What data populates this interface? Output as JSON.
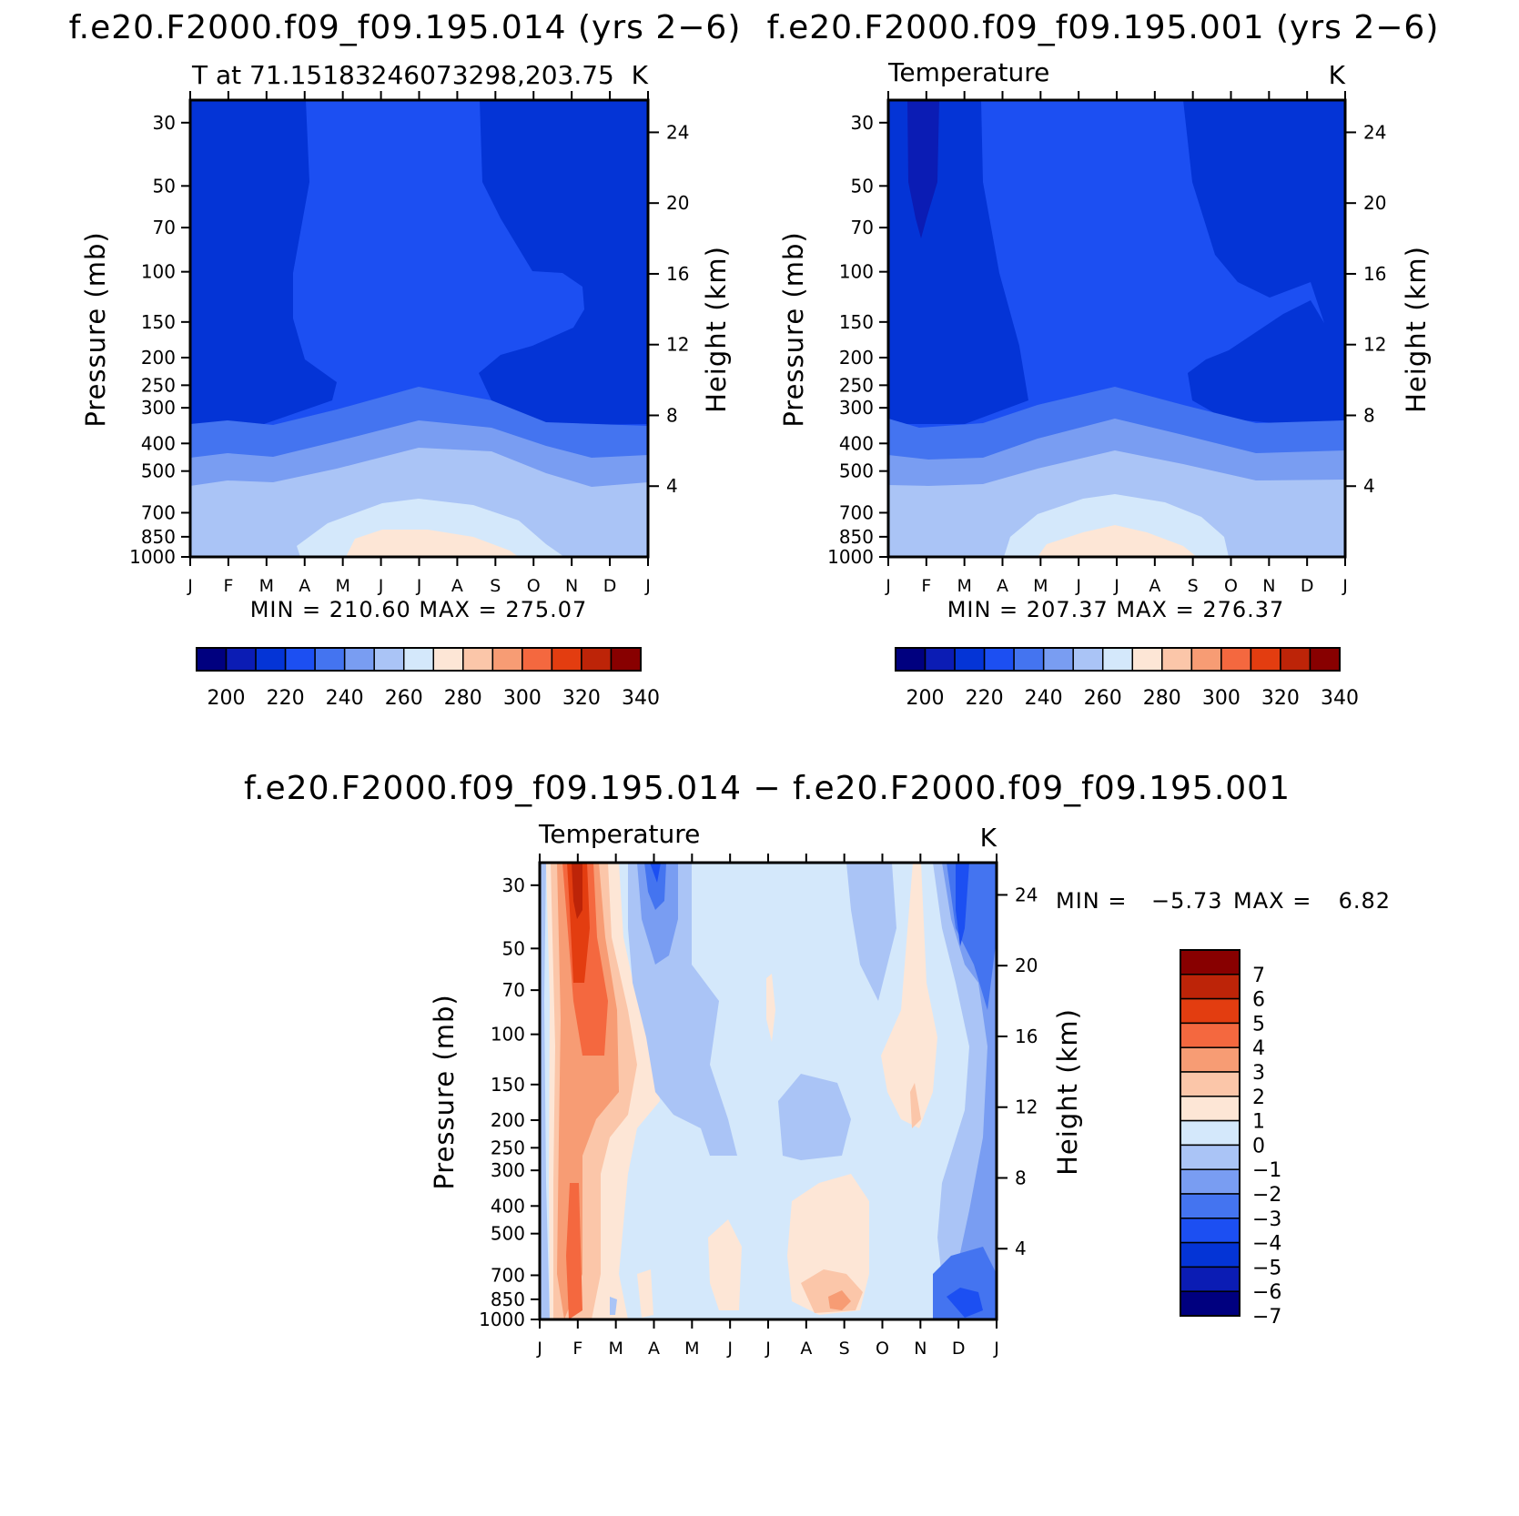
{
  "colors": {
    "palette": [
      "#00007f",
      "#0b1cb4",
      "#0434d6",
      "#1c4ff2",
      "#4474f0",
      "#799df2",
      "#aac4f6",
      "#d4e8fb",
      "#fde6d6",
      "#fbc6a9",
      "#f79c74",
      "#f4683f",
      "#e33d10",
      "#bd2408",
      "#880000"
    ],
    "contour_palette": [
      "#00007f",
      "#0b1cb4",
      "#0434d6",
      "#1c4ff2",
      "#4474f0",
      "#799df2",
      "#aac4f6",
      "#d4e8fb",
      "#fde6d6",
      "#fbc6a9",
      "#f79c74",
      "#f4683f",
      "#e33d10",
      "#bd2408",
      "#880000"
    ]
  },
  "axes_common": {
    "pressure_ticks": [
      "30",
      "50",
      "70",
      "100",
      "150",
      "200",
      "250",
      "300",
      "400",
      "500",
      "700",
      "850",
      "1000"
    ],
    "height_ticks": [
      "24",
      "20",
      "16",
      "12",
      "8",
      "4"
    ],
    "months": [
      "J",
      "F",
      "M",
      "A",
      "M",
      "J",
      "J",
      "A",
      "S",
      "O",
      "N",
      "D",
      "J"
    ],
    "ylabel": "Pressure (mb)",
    "ylabel_right": "Height (km)"
  },
  "chart_data": [
    {
      "type": "heatmap",
      "title": "f.e20.F2000.f09_f09.195.014 (yrs 2−6)",
      "left_label": "T at 71.15183246073298,203.75",
      "right_label": "K",
      "xlabel": "",
      "ylabel": "Pressure (mb)",
      "ylabel_right": "Height (km)",
      "min_max": "MIN =  210.60  MAX =  275.07",
      "min": 210.6,
      "max": 275.07,
      "colorbar_labels": [
        "200",
        "220",
        "240",
        "260",
        "280",
        "300",
        "320",
        "340"
      ],
      "levels": [
        200,
        210,
        220,
        230,
        240,
        250,
        260,
        270,
        280,
        290,
        300,
        310,
        320,
        330,
        340
      ]
    },
    {
      "type": "heatmap",
      "title": "f.e20.F2000.f09_f09.195.001 (yrs 2−6)",
      "left_label": "Temperature",
      "right_label": "K",
      "xlabel": "",
      "ylabel": "Pressure (mb)",
      "ylabel_right": "Height (km)",
      "min_max": "MIN =  207.37  MAX =  276.37",
      "min": 207.37,
      "max": 276.37,
      "colorbar_labels": [
        "200",
        "220",
        "240",
        "260",
        "280",
        "300",
        "320",
        "340"
      ],
      "levels": [
        200,
        210,
        220,
        230,
        240,
        250,
        260,
        270,
        280,
        290,
        300,
        310,
        320,
        330,
        340
      ]
    },
    {
      "type": "heatmap",
      "title": "f.e20.F2000.f09_f09.195.014 − f.e20.F2000.f09_f09.195.001",
      "left_label": "Temperature",
      "right_label": "K",
      "xlabel": "",
      "ylabel": "Pressure (mb)",
      "ylabel_right": "Height (km)",
      "min_max_label": "MIN =",
      "min_value": "−5.73",
      "max_label": "MAX =",
      "max_value": "6.82",
      "min": -5.73,
      "max": 6.82,
      "colorbar_labels": [
        "7",
        "6",
        "5",
        "4",
        "3",
        "2",
        "1",
        "0",
        "−1",
        "−2",
        "−3",
        "−4",
        "−5",
        "−6",
        "−7"
      ],
      "levels": [
        -7,
        -6,
        -5,
        -4,
        -3,
        -2,
        -1,
        0,
        1,
        2,
        3,
        4,
        5,
        6,
        7
      ]
    }
  ]
}
